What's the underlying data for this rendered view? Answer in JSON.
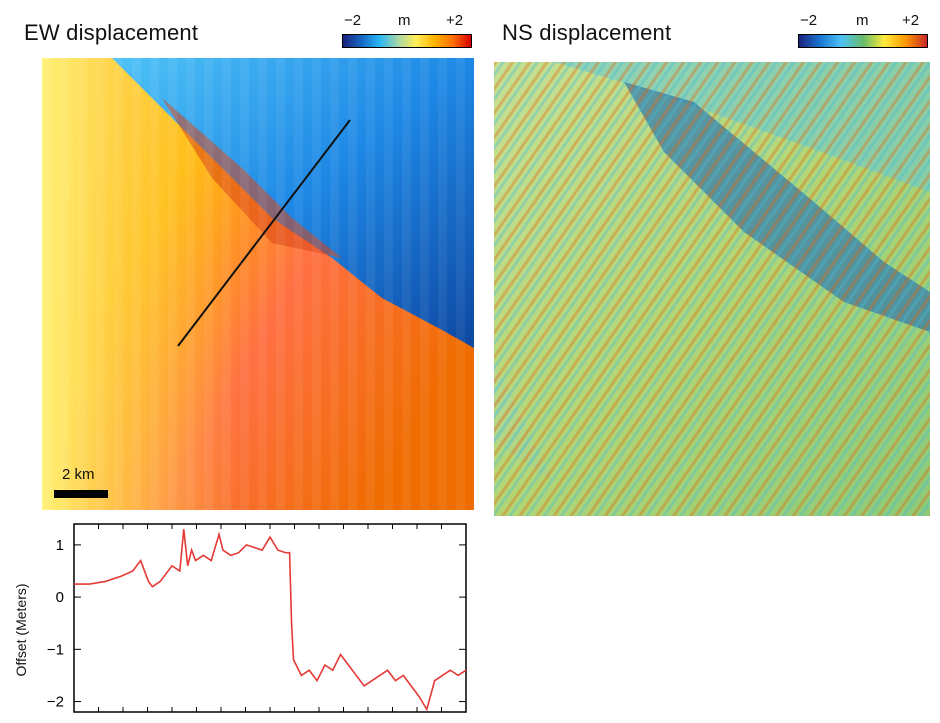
{
  "ew_panel": {
    "title": "EW displacement",
    "colorbar": {
      "min_label": "−2",
      "unit_label": "m",
      "max_label": "+2",
      "colors": [
        "#1a237e",
        "#1565c0",
        "#29b6f6",
        "#a5d6a7",
        "#ffee58",
        "#ffb300",
        "#ff6f00",
        "#d50000"
      ]
    },
    "scale_label": "2 km"
  },
  "ns_panel": {
    "title": "NS displacement",
    "colorbar": {
      "min_label": "−2",
      "unit_label": "m",
      "max_label": "+2",
      "colors": [
        "#1a237e",
        "#1976d2",
        "#4fc3f7",
        "#66bb6a",
        "#ffeb3b",
        "#ff9800",
        "#c62828"
      ]
    }
  },
  "chart_data": {
    "type": "line",
    "ylabel": "Offset (Meters)",
    "xlabel": "",
    "ylim": [
      -2.2,
      1.4
    ],
    "xlim": [
      0,
      1
    ],
    "yticks": [
      1,
      0,
      -1,
      -2
    ],
    "ytick_labels": [
      "1",
      "0",
      "−1",
      "−2"
    ],
    "grid": false,
    "series": [
      {
        "color": "#e53935",
        "x": [
          0,
          0.04,
          0.08,
          0.12,
          0.15,
          0.17,
          0.19,
          0.2,
          0.22,
          0.25,
          0.27,
          0.28,
          0.29,
          0.3,
          0.31,
          0.33,
          0.35,
          0.37,
          0.38,
          0.4,
          0.42,
          0.44,
          0.46,
          0.48,
          0.5,
          0.52,
          0.54,
          0.55,
          0.555,
          0.56,
          0.58,
          0.6,
          0.62,
          0.64,
          0.66,
          0.68,
          0.7,
          0.72,
          0.74,
          0.76,
          0.78,
          0.8,
          0.82,
          0.84,
          0.86,
          0.88,
          0.9,
          0.92,
          0.94,
          0.96,
          0.98,
          1.0
        ],
        "y": [
          0.25,
          0.25,
          0.3,
          0.4,
          0.5,
          0.7,
          0.3,
          0.2,
          0.3,
          0.6,
          0.5,
          1.3,
          0.6,
          0.9,
          0.7,
          0.8,
          0.7,
          1.2,
          0.9,
          0.8,
          0.85,
          1.0,
          0.95,
          0.9,
          1.15,
          0.9,
          0.85,
          0.85,
          -0.5,
          -1.2,
          -1.5,
          -1.4,
          -1.6,
          -1.3,
          -1.4,
          -1.1,
          -1.3,
          -1.5,
          -1.7,
          -1.6,
          -1.5,
          -1.4,
          -1.6,
          -1.5,
          -1.7,
          -1.9,
          -2.15,
          -1.6,
          -1.5,
          -1.4,
          -1.5,
          -1.4
        ]
      }
    ]
  }
}
